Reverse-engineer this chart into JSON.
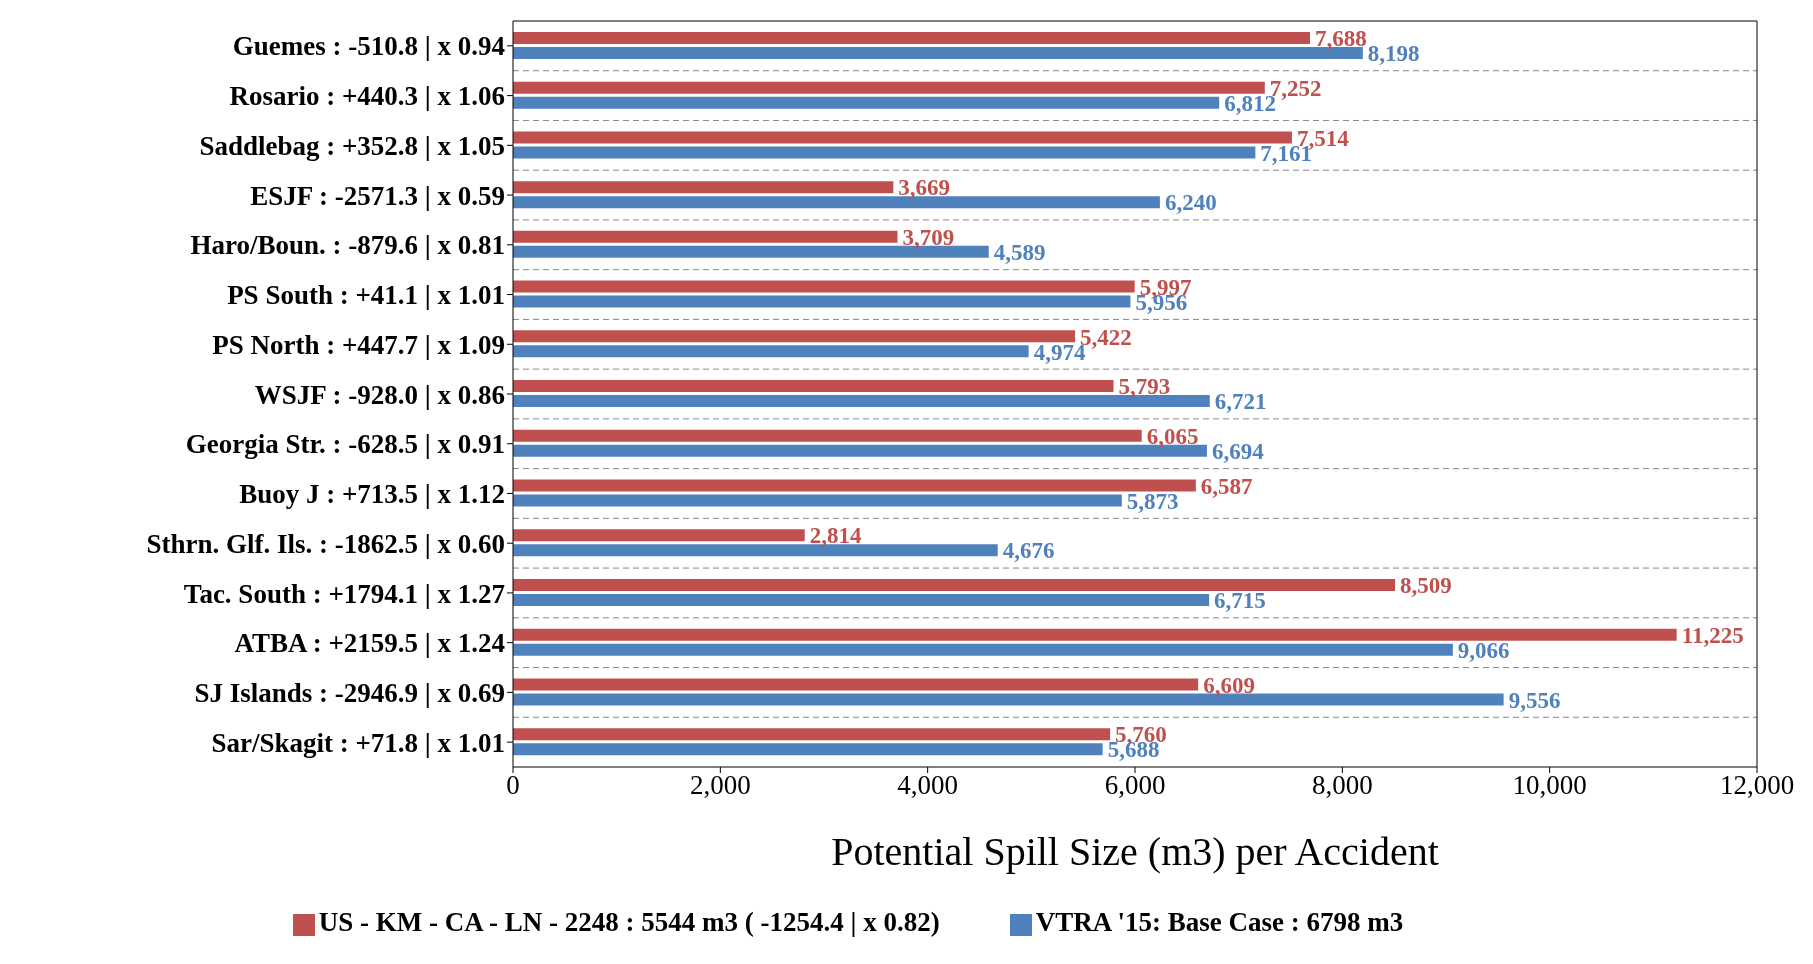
{
  "chart_data": {
    "type": "bar",
    "orientation": "horizontal",
    "xlabel": "Potential Spill Size (m3) per Accident",
    "categories": [
      "Guemes : -510.8 |  x 0.94",
      "Rosario : +440.3 |  x 1.06",
      "Saddlebag : +352.8 |  x 1.05",
      "ESJF : -2571.3 |  x 0.59",
      "Haro/Boun. : -879.6 |  x 0.81",
      "PS South : +41.1 |  x 1.01",
      "PS North : +447.7 |  x 1.09",
      "WSJF : -928.0 |  x 0.86",
      "Georgia Str. : -628.5 |  x 0.91",
      "Buoy J : +713.5 |  x 1.12",
      "Sthrn. Glf. Ils. : -1862.5 |  x 0.60",
      "Tac. South : +1794.1 |  x 1.27",
      "ATBA : +2159.5 |  x 1.24",
      "SJ Islands : -2946.9 |  x 0.69",
      "Sar/Skagit : +71.8 |  x 1.01"
    ],
    "series": [
      {
        "name": "US - KM - CA - LN - 2248 : 5544 m3 ( -1254.4 |  x 0.82)",
        "color": "#c0504d",
        "values": [
          7688,
          7252,
          7514,
          3669,
          3709,
          5997,
          5422,
          5793,
          6065,
          6587,
          2814,
          8509,
          11225,
          6609,
          5760
        ],
        "value_labels": [
          "7,688",
          "7,252",
          "7,514",
          "3,669",
          "3,709",
          "5,997",
          "5,422",
          "5,793",
          "6,065",
          "6,587",
          "2,814",
          "8,509",
          "11,225",
          "6,609",
          "5,760"
        ]
      },
      {
        "name": "VTRA '15: Base Case : 6798 m3",
        "color": "#4f81bd",
        "values": [
          8198,
          6812,
          7161,
          6240,
          4589,
          5956,
          4974,
          6721,
          6694,
          5873,
          4676,
          6715,
          9066,
          9556,
          5688
        ],
        "value_labels": [
          "8,198",
          "6,812",
          "7,161",
          "6,240",
          "4,589",
          "5,956",
          "4,974",
          "6,721",
          "6,694",
          "5,873",
          "4,676",
          "6,715",
          "9,066",
          "9,556",
          "5,688"
        ]
      }
    ],
    "xlim": [
      0,
      12000
    ],
    "xticks": [
      0,
      {
        "value": 2000,
        "label": "2,000"
      },
      {
        "value": 4000,
        "label": "4,000"
      },
      {
        "value": 6000,
        "label": "6,000"
      },
      {
        "value": 8000,
        "label": "8,000"
      },
      {
        "value": 10000,
        "label": "10,000"
      },
      {
        "value": 12000,
        "label": "12,000"
      }
    ],
    "grid": "y",
    "legend": "bottom"
  }
}
